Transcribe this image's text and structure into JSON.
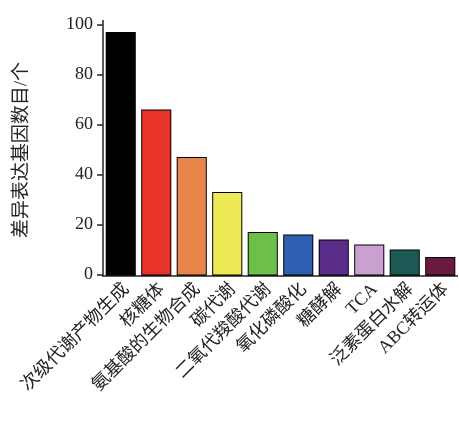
{
  "chart_data": {
    "type": "bar",
    "y_label": "差异表达基因数目/个",
    "categories": [
      "次级代谢产物生成",
      "核糖体",
      "氨基酸的生物合成",
      "碳代谢",
      "二氧代羧酸代谢",
      "氧化磷酸化",
      "糖酵解",
      "TCA",
      "泛素蛋白水解",
      "ABC转运体"
    ],
    "values": [
      97,
      66,
      47,
      33,
      17,
      16,
      14,
      12,
      10,
      7
    ],
    "colors": [
      "#000000",
      "#e8332a",
      "#e8834a",
      "#eeea55",
      "#6cc04a",
      "#2f5fb0",
      "#5b2d8a",
      "#c9a0d0",
      "#1e5a55",
      "#6a1a40"
    ],
    "ylim": [
      0,
      100
    ],
    "yticks": [
      0,
      20,
      40,
      60,
      80,
      100
    ],
    "grid": false
  }
}
